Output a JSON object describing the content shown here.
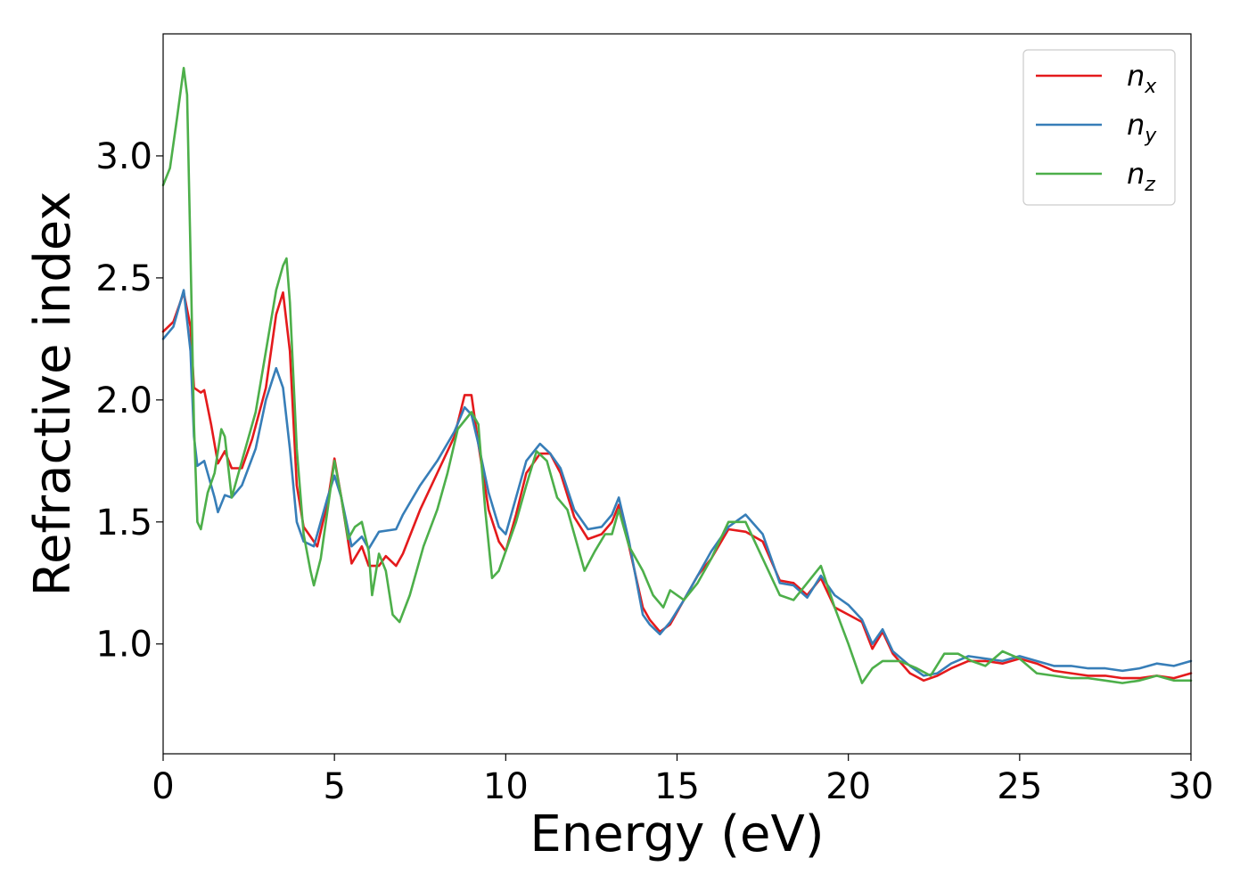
{
  "chart_data": {
    "type": "line",
    "title": "",
    "xlabel": "Energy (eV)",
    "ylabel": "Refractive index",
    "xlim": [
      0,
      30
    ],
    "ylim": [
      0.55,
      3.5
    ],
    "xticks": [
      0,
      5,
      10,
      15,
      20,
      25,
      30
    ],
    "xtick_labels": [
      "0",
      "5",
      "10",
      "15",
      "20",
      "25",
      "30"
    ],
    "yticks": [
      1.0,
      1.5,
      2.0,
      2.5,
      3.0
    ],
    "ytick_labels": [
      "1.0",
      "1.5",
      "2.0",
      "2.5",
      "3.0"
    ],
    "grid": false,
    "legend_position": "top-right",
    "series": [
      {
        "name": "n",
        "subscript": "x",
        "color": "#e41a1c",
        "points": [
          [
            0,
            2.28
          ],
          [
            0.3,
            2.32
          ],
          [
            0.6,
            2.44
          ],
          [
            0.8,
            2.3
          ],
          [
            0.9,
            2.05
          ],
          [
            1.1,
            2.03
          ],
          [
            1.2,
            2.04
          ],
          [
            1.4,
            1.9
          ],
          [
            1.6,
            1.74
          ],
          [
            1.8,
            1.79
          ],
          [
            2.0,
            1.72
          ],
          [
            2.3,
            1.72
          ],
          [
            2.6,
            1.84
          ],
          [
            3.0,
            2.05
          ],
          [
            3.3,
            2.35
          ],
          [
            3.5,
            2.44
          ],
          [
            3.7,
            2.2
          ],
          [
            3.9,
            1.65
          ],
          [
            4.1,
            1.48
          ],
          [
            4.3,
            1.44
          ],
          [
            4.5,
            1.4
          ],
          [
            4.8,
            1.58
          ],
          [
            5.0,
            1.76
          ],
          [
            5.2,
            1.6
          ],
          [
            5.5,
            1.33
          ],
          [
            5.8,
            1.4
          ],
          [
            6.0,
            1.32
          ],
          [
            6.3,
            1.32
          ],
          [
            6.5,
            1.36
          ],
          [
            6.8,
            1.32
          ],
          [
            7.0,
            1.37
          ],
          [
            7.5,
            1.55
          ],
          [
            8.0,
            1.7
          ],
          [
            8.5,
            1.85
          ],
          [
            8.8,
            2.02
          ],
          [
            9.0,
            2.02
          ],
          [
            9.2,
            1.82
          ],
          [
            9.5,
            1.55
          ],
          [
            9.8,
            1.42
          ],
          [
            10.0,
            1.38
          ],
          [
            10.3,
            1.53
          ],
          [
            10.6,
            1.7
          ],
          [
            11.0,
            1.78
          ],
          [
            11.3,
            1.78
          ],
          [
            11.6,
            1.7
          ],
          [
            12.0,
            1.52
          ],
          [
            12.4,
            1.43
          ],
          [
            12.8,
            1.45
          ],
          [
            13.1,
            1.5
          ],
          [
            13.3,
            1.57
          ],
          [
            13.6,
            1.4
          ],
          [
            14.0,
            1.15
          ],
          [
            14.2,
            1.1
          ],
          [
            14.5,
            1.05
          ],
          [
            14.8,
            1.08
          ],
          [
            15.2,
            1.18
          ],
          [
            15.6,
            1.28
          ],
          [
            16.0,
            1.35
          ],
          [
            16.5,
            1.47
          ],
          [
            17.0,
            1.46
          ],
          [
            17.5,
            1.42
          ],
          [
            18.0,
            1.26
          ],
          [
            18.4,
            1.25
          ],
          [
            18.8,
            1.2
          ],
          [
            19.2,
            1.27
          ],
          [
            19.6,
            1.15
          ],
          [
            20.0,
            1.12
          ],
          [
            20.4,
            1.09
          ],
          [
            20.7,
            0.98
          ],
          [
            21.0,
            1.05
          ],
          [
            21.3,
            0.96
          ],
          [
            21.8,
            0.88
          ],
          [
            22.2,
            0.85
          ],
          [
            22.6,
            0.87
          ],
          [
            23.0,
            0.9
          ],
          [
            23.5,
            0.93
          ],
          [
            24.0,
            0.93
          ],
          [
            24.5,
            0.92
          ],
          [
            25.0,
            0.94
          ],
          [
            25.5,
            0.92
          ],
          [
            26.0,
            0.89
          ],
          [
            26.5,
            0.88
          ],
          [
            27.0,
            0.87
          ],
          [
            27.5,
            0.87
          ],
          [
            28.0,
            0.86
          ],
          [
            28.5,
            0.86
          ],
          [
            29.0,
            0.87
          ],
          [
            29.5,
            0.86
          ],
          [
            30.0,
            0.88
          ]
        ]
      },
      {
        "name": "n",
        "subscript": "y",
        "color": "#377eb8",
        "points": [
          [
            0,
            2.25
          ],
          [
            0.3,
            2.3
          ],
          [
            0.6,
            2.45
          ],
          [
            0.8,
            2.2
          ],
          [
            0.9,
            1.85
          ],
          [
            1.0,
            1.73
          ],
          [
            1.2,
            1.75
          ],
          [
            1.5,
            1.6
          ],
          [
            1.6,
            1.54
          ],
          [
            1.8,
            1.61
          ],
          [
            2.0,
            1.6
          ],
          [
            2.3,
            1.65
          ],
          [
            2.7,
            1.8
          ],
          [
            3.0,
            2.0
          ],
          [
            3.3,
            2.13
          ],
          [
            3.5,
            2.05
          ],
          [
            3.7,
            1.8
          ],
          [
            3.9,
            1.5
          ],
          [
            4.1,
            1.42
          ],
          [
            4.4,
            1.4
          ],
          [
            4.8,
            1.6
          ],
          [
            5.0,
            1.69
          ],
          [
            5.2,
            1.6
          ],
          [
            5.5,
            1.4
          ],
          [
            5.8,
            1.44
          ],
          [
            6.0,
            1.39
          ],
          [
            6.3,
            1.46
          ],
          [
            6.8,
            1.47
          ],
          [
            7.0,
            1.53
          ],
          [
            7.5,
            1.65
          ],
          [
            8.0,
            1.75
          ],
          [
            8.5,
            1.87
          ],
          [
            8.8,
            1.97
          ],
          [
            9.0,
            1.94
          ],
          [
            9.2,
            1.82
          ],
          [
            9.5,
            1.62
          ],
          [
            9.8,
            1.48
          ],
          [
            10.0,
            1.45
          ],
          [
            10.3,
            1.6
          ],
          [
            10.6,
            1.75
          ],
          [
            11.0,
            1.82
          ],
          [
            11.3,
            1.78
          ],
          [
            11.6,
            1.72
          ],
          [
            12.0,
            1.55
          ],
          [
            12.4,
            1.47
          ],
          [
            12.8,
            1.48
          ],
          [
            13.1,
            1.53
          ],
          [
            13.3,
            1.6
          ],
          [
            13.6,
            1.42
          ],
          [
            14.0,
            1.12
          ],
          [
            14.2,
            1.08
          ],
          [
            14.5,
            1.04
          ],
          [
            14.8,
            1.09
          ],
          [
            15.2,
            1.18
          ],
          [
            15.6,
            1.28
          ],
          [
            16.0,
            1.38
          ],
          [
            16.5,
            1.48
          ],
          [
            17.0,
            1.53
          ],
          [
            17.5,
            1.45
          ],
          [
            18.0,
            1.25
          ],
          [
            18.4,
            1.24
          ],
          [
            18.8,
            1.19
          ],
          [
            19.2,
            1.28
          ],
          [
            19.6,
            1.2
          ],
          [
            20.0,
            1.16
          ],
          [
            20.4,
            1.1
          ],
          [
            20.7,
            1.0
          ],
          [
            21.0,
            1.06
          ],
          [
            21.3,
            0.97
          ],
          [
            21.8,
            0.91
          ],
          [
            22.2,
            0.87
          ],
          [
            22.6,
            0.88
          ],
          [
            23.0,
            0.92
          ],
          [
            23.5,
            0.95
          ],
          [
            24.0,
            0.94
          ],
          [
            24.5,
            0.93
          ],
          [
            25.0,
            0.95
          ],
          [
            25.5,
            0.93
          ],
          [
            26.0,
            0.91
          ],
          [
            26.5,
            0.91
          ],
          [
            27.0,
            0.9
          ],
          [
            27.5,
            0.9
          ],
          [
            28.0,
            0.89
          ],
          [
            28.5,
            0.9
          ],
          [
            29.0,
            0.92
          ],
          [
            29.5,
            0.91
          ],
          [
            30.0,
            0.93
          ]
        ]
      },
      {
        "name": "n",
        "subscript": "z",
        "color": "#4daf4a",
        "points": [
          [
            0,
            2.88
          ],
          [
            0.2,
            2.95
          ],
          [
            0.4,
            3.15
          ],
          [
            0.6,
            3.36
          ],
          [
            0.7,
            3.25
          ],
          [
            0.8,
            2.6
          ],
          [
            0.9,
            1.9
          ],
          [
            1.0,
            1.5
          ],
          [
            1.1,
            1.47
          ],
          [
            1.3,
            1.62
          ],
          [
            1.5,
            1.7
          ],
          [
            1.7,
            1.88
          ],
          [
            1.8,
            1.85
          ],
          [
            2.0,
            1.6
          ],
          [
            2.3,
            1.75
          ],
          [
            2.7,
            1.95
          ],
          [
            3.0,
            2.2
          ],
          [
            3.3,
            2.45
          ],
          [
            3.5,
            2.55
          ],
          [
            3.6,
            2.58
          ],
          [
            3.7,
            2.4
          ],
          [
            3.9,
            1.8
          ],
          [
            4.1,
            1.45
          ],
          [
            4.3,
            1.3
          ],
          [
            4.4,
            1.24
          ],
          [
            4.6,
            1.35
          ],
          [
            4.8,
            1.55
          ],
          [
            5.0,
            1.75
          ],
          [
            5.2,
            1.6
          ],
          [
            5.4,
            1.43
          ],
          [
            5.6,
            1.48
          ],
          [
            5.8,
            1.5
          ],
          [
            6.0,
            1.38
          ],
          [
            6.1,
            1.2
          ],
          [
            6.3,
            1.37
          ],
          [
            6.5,
            1.3
          ],
          [
            6.7,
            1.12
          ],
          [
            6.9,
            1.09
          ],
          [
            7.2,
            1.2
          ],
          [
            7.6,
            1.4
          ],
          [
            8.0,
            1.55
          ],
          [
            8.3,
            1.7
          ],
          [
            8.6,
            1.88
          ],
          [
            9.0,
            1.95
          ],
          [
            9.2,
            1.9
          ],
          [
            9.4,
            1.55
          ],
          [
            9.6,
            1.27
          ],
          [
            9.8,
            1.3
          ],
          [
            10.0,
            1.38
          ],
          [
            10.3,
            1.5
          ],
          [
            10.6,
            1.65
          ],
          [
            10.9,
            1.79
          ],
          [
            11.2,
            1.75
          ],
          [
            11.5,
            1.6
          ],
          [
            11.8,
            1.55
          ],
          [
            12.0,
            1.45
          ],
          [
            12.3,
            1.3
          ],
          [
            12.6,
            1.38
          ],
          [
            12.9,
            1.45
          ],
          [
            13.1,
            1.45
          ],
          [
            13.3,
            1.55
          ],
          [
            13.6,
            1.4
          ],
          [
            14.0,
            1.3
          ],
          [
            14.3,
            1.2
          ],
          [
            14.6,
            1.15
          ],
          [
            14.8,
            1.22
          ],
          [
            15.2,
            1.18
          ],
          [
            15.6,
            1.25
          ],
          [
            16.0,
            1.35
          ],
          [
            16.5,
            1.5
          ],
          [
            17.0,
            1.5
          ],
          [
            17.5,
            1.35
          ],
          [
            18.0,
            1.2
          ],
          [
            18.4,
            1.18
          ],
          [
            18.8,
            1.25
          ],
          [
            19.2,
            1.32
          ],
          [
            19.6,
            1.15
          ],
          [
            20.0,
            1.0
          ],
          [
            20.4,
            0.84
          ],
          [
            20.7,
            0.9
          ],
          [
            21.0,
            0.93
          ],
          [
            21.5,
            0.93
          ],
          [
            22.0,
            0.9
          ],
          [
            22.4,
            0.87
          ],
          [
            22.8,
            0.96
          ],
          [
            23.2,
            0.96
          ],
          [
            23.6,
            0.93
          ],
          [
            24.0,
            0.91
          ],
          [
            24.5,
            0.97
          ],
          [
            25.0,
            0.94
          ],
          [
            25.5,
            0.88
          ],
          [
            26.0,
            0.87
          ],
          [
            26.5,
            0.86
          ],
          [
            27.0,
            0.86
          ],
          [
            27.5,
            0.85
          ],
          [
            28.0,
            0.84
          ],
          [
            28.5,
            0.85
          ],
          [
            29.0,
            0.87
          ],
          [
            29.5,
            0.85
          ],
          [
            30.0,
            0.85
          ]
        ]
      }
    ]
  }
}
